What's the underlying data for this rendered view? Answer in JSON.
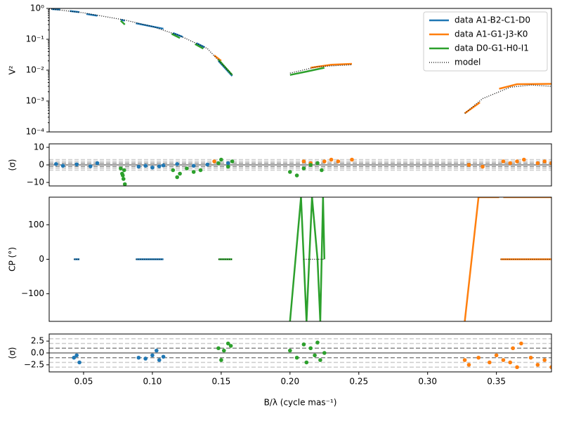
{
  "chart_data": [
    {
      "type": "line",
      "yscale": "log",
      "ylabel": "V²",
      "legend": "upper right",
      "xlim": [
        0.025,
        0.39
      ],
      "ylim": [
        0.0001,
        1
      ],
      "yticks": [
        {
          "value": 0.0001,
          "label": "10⁻⁴"
        },
        {
          "value": 0.001,
          "label": "10⁻³"
        },
        {
          "value": 0.01,
          "label": "10⁻²"
        },
        {
          "value": 0.1,
          "label": "10⁻¹"
        },
        {
          "value": 1,
          "label": "10⁰"
        }
      ],
      "series": [
        {
          "name": "data A1-B2-C1-D0",
          "color": "#1f77b4",
          "x": [
            0.027,
            0.033,
            null,
            0.04,
            0.047,
            null,
            0.052,
            0.06,
            null,
            0.077,
            0.08,
            null,
            0.088,
            0.108,
            null,
            0.115,
            0.122,
            null,
            0.132,
            0.138,
            null,
            0.148,
            0.158
          ],
          "values": [
            0.95,
            0.92,
            null,
            0.82,
            0.76,
            null,
            0.66,
            0.58,
            null,
            0.43,
            0.4,
            null,
            0.33,
            0.22,
            null,
            0.16,
            0.12,
            null,
            0.075,
            0.055,
            null,
            0.02,
            0.0065
          ]
        },
        {
          "name": "data A1-G1-J3-K0",
          "color": "#ff7f0e",
          "x": [
            0.145,
            0.15,
            null,
            0.215,
            0.23,
            0.245,
            null,
            0.327,
            0.338,
            null,
            0.352,
            0.365,
            0.39
          ],
          "values": [
            0.03,
            0.02,
            null,
            0.012,
            0.015,
            0.016,
            null,
            0.0004,
            0.0009,
            null,
            0.0025,
            0.0035,
            0.0036
          ]
        },
        {
          "name": "data D0-G1-H0-I1",
          "color": "#2ca02c",
          "x": [
            0.077,
            0.08,
            null,
            0.114,
            0.12,
            null,
            0.131,
            0.137,
            null,
            0.148,
            0.158,
            null,
            0.2,
            0.212,
            0.225
          ],
          "values": [
            0.4,
            0.3,
            null,
            0.15,
            0.11,
            null,
            0.07,
            0.05,
            null,
            0.022,
            0.007,
            null,
            0.007,
            0.009,
            0.012
          ]
        },
        {
          "name": "model",
          "color": "#000000",
          "linestyle": "dotted",
          "x": [
            0.025,
            0.05,
            0.08,
            0.1,
            0.12,
            0.14,
            0.158,
            null,
            0.2,
            0.22,
            0.245,
            null,
            0.327,
            0.34,
            0.36,
            0.375,
            0.39
          ],
          "values": [
            0.97,
            0.72,
            0.42,
            0.26,
            0.13,
            0.05,
            0.007,
            null,
            0.008,
            0.013,
            0.015,
            null,
            0.0004,
            0.0012,
            0.0028,
            0.0033,
            0.003
          ]
        }
      ]
    },
    {
      "type": "scatter",
      "ylabel": "(σ)",
      "xlim": [
        0.025,
        0.39
      ],
      "ylim": [
        -12,
        12
      ],
      "yticks": [
        {
          "value": -10,
          "label": "−10"
        },
        0,
        10
      ],
      "hlines": [
        -3,
        -2,
        -1,
        0,
        1,
        2,
        3
      ],
      "series": [
        {
          "name": "data A1-B2-C1-D0",
          "color": "#1f77b4",
          "x": [
            0.03,
            0.035,
            0.045,
            0.055,
            0.06,
            0.09,
            0.095,
            0.1,
            0.105,
            0.108,
            0.118,
            0.13,
            0.14,
            0.155
          ],
          "values": [
            0.5,
            -0.5,
            0.3,
            -0.8,
            1,
            -1,
            -0.5,
            -1.5,
            -0.8,
            -0.3,
            0.5,
            -0.5,
            0.2,
            1
          ]
        },
        {
          "name": "data A1-G1-J3-K0",
          "color": "#ff7f0e",
          "x": [
            0.145,
            0.21,
            0.215,
            0.225,
            0.23,
            0.235,
            0.245,
            0.33,
            0.34,
            0.355,
            0.36,
            0.365,
            0.37,
            0.38,
            0.385,
            0.39
          ],
          "values": [
            2,
            2,
            1,
            2,
            3,
            2,
            3,
            0,
            -1,
            2,
            1,
            2,
            3,
            1,
            2,
            1
          ]
        },
        {
          "name": "data D0-G1-H0-I1",
          "color": "#2ca02c",
          "x": [
            0.077,
            0.078,
            0.079,
            0.08,
            0.0795,
            0.0785,
            0.115,
            0.118,
            0.12,
            0.125,
            0.13,
            0.135,
            0.148,
            0.15,
            0.155,
            0.158,
            0.2,
            0.205,
            0.21,
            0.215,
            0.22,
            0.223
          ],
          "values": [
            -2,
            -5,
            -8,
            -11,
            -3,
            -6,
            -3,
            -7,
            -5,
            -2,
            -4,
            -3,
            1,
            3,
            -1,
            2,
            -4,
            -6,
            -2,
            0,
            1,
            -3
          ]
        }
      ]
    },
    {
      "type": "line",
      "ylabel": "CP (°)",
      "xlim": [
        0.025,
        0.39
      ],
      "ylim": [
        -180,
        180
      ],
      "yticks": [
        {
          "value": -100,
          "label": "−100"
        },
        0,
        100
      ],
      "series": [
        {
          "name": "data A1-B2-C1-D0",
          "color": "#1f77b4",
          "x": [
            0.043,
            0.047,
            null,
            0.088,
            0.108
          ],
          "values": [
            0,
            0,
            null,
            0,
            0
          ]
        },
        {
          "name": "data A1-G1-J3-K0",
          "color": "#ff7f0e",
          "x": [
            0.327,
            0.337,
            0.352,
            null,
            0.353,
            0.39,
            null,
            0.355,
            0.39
          ],
          "values": [
            -180,
            180,
            180,
            null,
            0,
            0,
            null,
            180,
            180
          ]
        },
        {
          "name": "data D0-G1-H0-I1",
          "color": "#2ca02c",
          "x": [
            0.148,
            0.158,
            null,
            0.2,
            0.208,
            0.212,
            0.214,
            0.216,
            0.22,
            0.222,
            0.224,
            0.225
          ],
          "values": [
            0,
            0,
            null,
            -180,
            180,
            -180,
            0,
            180,
            0,
            -180,
            180,
            0
          ]
        },
        {
          "name": "model",
          "color": "#000000",
          "linestyle": "dotted",
          "x": [
            0.043,
            0.047,
            null,
            0.088,
            0.108,
            null,
            0.148,
            0.158,
            null,
            0.21,
            0.225,
            null,
            0.353,
            0.39
          ],
          "values": [
            0,
            0,
            null,
            0,
            0,
            null,
            0,
            0,
            null,
            0,
            0,
            null,
            0,
            0
          ]
        }
      ]
    },
    {
      "type": "scatter",
      "ylabel": "(σ)",
      "xlabel": "B/λ (cycle mas⁻¹)",
      "xlim": [
        0.025,
        0.39
      ],
      "ylim": [
        -4,
        4
      ],
      "xticks": [
        0.05,
        {
          "value": 0.1,
          "label": "0.10"
        },
        0.15,
        {
          "value": 0.2,
          "label": "0.20"
        },
        0.25,
        {
          "value": 0.3,
          "label": "0.30"
        },
        0.35
      ],
      "yticks": [
        {
          "value": -2.5,
          "label": "−2.5"
        },
        {
          "value": 0,
          "label": "0.0"
        },
        2.5
      ],
      "hlines": [
        -3,
        -2,
        -1,
        0,
        1,
        2,
        3
      ],
      "series": [
        {
          "name": "data A1-B2-C1-D0",
          "color": "#1f77b4",
          "x": [
            0.043,
            0.045,
            0.047,
            0.09,
            0.095,
            0.1,
            0.103,
            0.105,
            0.108
          ],
          "values": [
            -1,
            -0.5,
            -2,
            -1,
            -1.2,
            -0.5,
            0.5,
            -1.5,
            -0.8
          ]
        },
        {
          "name": "data A1-G1-J3-K0",
          "color": "#ff7f0e",
          "x": [
            0.327,
            0.33,
            0.337,
            0.345,
            0.35,
            0.355,
            0.36,
            0.362,
            0.365,
            0.368,
            0.375,
            0.38,
            0.385,
            0.39
          ],
          "values": [
            -1.5,
            -2.5,
            -1,
            -2,
            -0.5,
            -1.5,
            -2,
            1,
            -3,
            2,
            -1,
            -2.5,
            -1.5,
            -3
          ]
        },
        {
          "name": "data D0-G1-H0-I1",
          "color": "#2ca02c",
          "x": [
            0.148,
            0.15,
            0.152,
            0.155,
            0.157,
            0.2,
            0.205,
            0.21,
            0.212,
            0.215,
            0.218,
            0.22,
            0.222,
            0.225
          ],
          "values": [
            1,
            -1.5,
            0.5,
            2,
            1.5,
            0.5,
            -1,
            1.8,
            -2,
            1,
            -0.5,
            2.2,
            -1.5,
            0
          ]
        }
      ]
    }
  ]
}
